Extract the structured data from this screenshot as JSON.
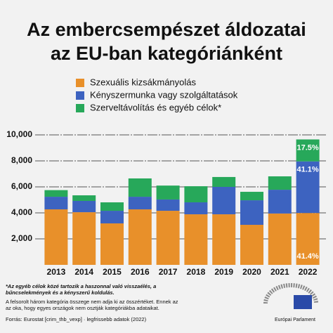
{
  "chart_data": {
    "type": "stacked-bar",
    "title": [
      "Az embercsempészet áldozatai",
      "az EU-ban kategóriánként"
    ],
    "categories": [
      "2013",
      "2014",
      "2015",
      "2016",
      "2017",
      "2018",
      "2019",
      "2020",
      "2021",
      "2022"
    ],
    "series": [
      {
        "name": "Szexuális kizsákmányolás",
        "color": "#e8902a",
        "values": [
          4270,
          4050,
          3190,
          4270,
          4160,
          3890,
          3890,
          3080,
          3950,
          3990
        ],
        "share_label": "41.4%"
      },
      {
        "name": "Kényszermunka vagy szolgáltatások",
        "color": "#3d63c0",
        "values": [
          970,
          870,
          970,
          970,
          870,
          920,
          2110,
          1890,
          1830,
          3970
        ],
        "share_label": "41.1%"
      },
      {
        "name": "Szerveltávolítás és egyéb célok*",
        "color": "#27a85a",
        "values": [
          510,
          430,
          650,
          1410,
          1070,
          1240,
          760,
          650,
          1030,
          1690
        ],
        "share_label": "17.5%"
      }
    ],
    "ylim": [
      0,
      10000
    ],
    "yticks": [
      {
        "value": 2000,
        "label": "2,000"
      },
      {
        "value": 4000,
        "label": "4,000"
      },
      {
        "value": 6000,
        "label": "6,000"
      },
      {
        "value": 8000,
        "label": "8,000"
      },
      {
        "value": 10000,
        "label": "10,000"
      }
    ],
    "grid": true,
    "notes": [
      "*Az egyéb célok közé tartozik a haszonnal való visszaélés, a bűncselekmények és a kényszerű koldulás.",
      "A felsorolt három kategória összege nem adja ki az összértéket. Ennek az az oka, hogy egyes országok nem osztják kategóriákba adataikat.",
      "Forrás: Eurostat [crim_thb_vexp] · legfrissebb adatok (2022)"
    ],
    "logo_text": "Európai Parlament"
  }
}
